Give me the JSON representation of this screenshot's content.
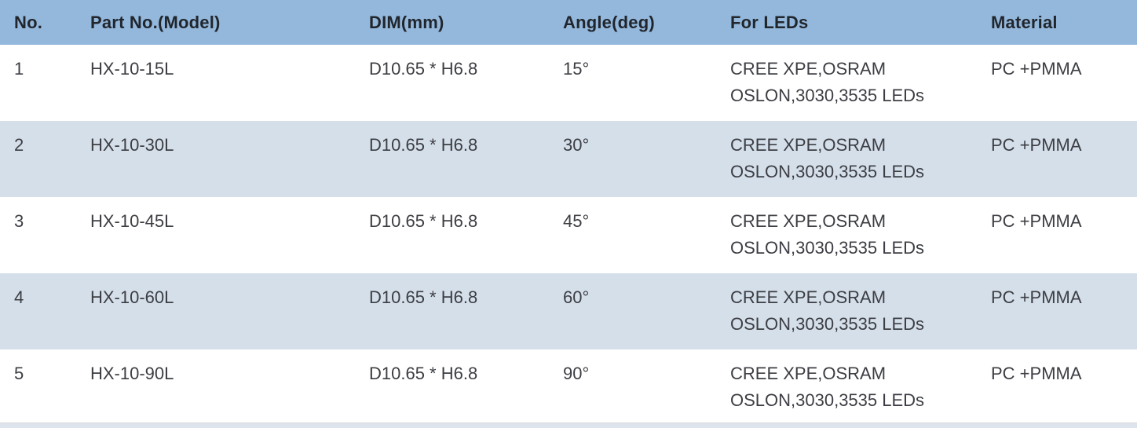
{
  "table": {
    "headers": [
      "No.",
      "Part No.(Model)",
      "DIM(mm)",
      "Angle(deg)",
      "For LEDs",
      "Material"
    ],
    "rows": [
      {
        "no": "1",
        "part": "HX-10-15L",
        "dim": "D10.65 * H6.8",
        "angle": "15°",
        "leds": [
          "CREE XPE,OSRAM",
          "OSLON,3030,3535 LEDs"
        ],
        "material": "PC +PMMA"
      },
      {
        "no": "2",
        "part": "HX-10-30L",
        "dim": "D10.65 * H6.8",
        "angle": "30°",
        "leds": [
          "CREE XPE,OSRAM",
          "OSLON,3030,3535 LEDs"
        ],
        "material": "PC +PMMA"
      },
      {
        "no": "3",
        "part": "HX-10-45L",
        "dim": "D10.65 * H6.8",
        "angle": "45°",
        "leds": [
          "CREE XPE,OSRAM",
          "OSLON,3030,3535 LEDs"
        ],
        "material": "PC +PMMA"
      },
      {
        "no": "4",
        "part": "HX-10-60L",
        "dim": "D10.65 * H6.8",
        "angle": "60°",
        "leds": [
          "CREE XPE,OSRAM",
          "OSLON,3030,3535 LEDs"
        ],
        "material": "PC +PMMA"
      },
      {
        "no": "5",
        "part": "HX-10-90L",
        "dim": "D10.65 * H6.8",
        "angle": "90°",
        "leds": [
          "CREE XPE,OSRAM",
          "OSLON,3030,3535 LEDs"
        ],
        "material": "PC +PMMA"
      }
    ]
  },
  "colors": {
    "header_bg": "#94B8DC",
    "row_bg": "#FFFFFF",
    "row_alt_bg": "#D5DFEA",
    "header_text": "#21262D",
    "body_text": "#3C3E43",
    "bottom_strip_bg": "#DEE4EE"
  }
}
